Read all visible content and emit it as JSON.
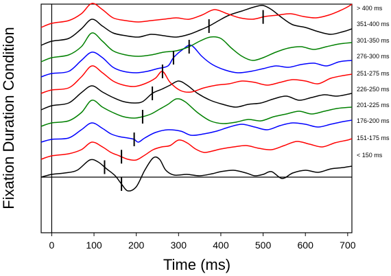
{
  "chart_data": {
    "type": "line",
    "xlabel": "Time (ms)",
    "ylabel": "Fixation Duration Condition",
    "x_ticks": [
      0,
      100,
      200,
      300,
      400,
      500,
      600,
      700
    ],
    "xlim": [
      -25,
      710
    ],
    "grid": false,
    "legend": "labels-right",
    "series": [
      {
        "name": "< 150 ms",
        "color": "#000000",
        "marker_x": [
          125,
          165
        ],
        "points": [
          [
            -25,
            0
          ],
          [
            0,
            4
          ],
          [
            30,
            6
          ],
          [
            60,
            10
          ],
          [
            90,
            25
          ],
          [
            110,
            22
          ],
          [
            130,
            12
          ],
          [
            150,
            2
          ],
          [
            165,
            -10
          ],
          [
            180,
            -20
          ],
          [
            200,
            -14
          ],
          [
            220,
            10
          ],
          [
            240,
            28
          ],
          [
            255,
            26
          ],
          [
            270,
            10
          ],
          [
            290,
            3
          ],
          [
            320,
            4
          ],
          [
            350,
            2
          ],
          [
            380,
            5
          ],
          [
            400,
            8
          ],
          [
            430,
            10
          ],
          [
            460,
            6
          ],
          [
            480,
            2
          ],
          [
            500,
            4
          ],
          [
            520,
            8
          ],
          [
            545,
            -2
          ],
          [
            570,
            6
          ],
          [
            600,
            10
          ],
          [
            630,
            7
          ],
          [
            660,
            12
          ],
          [
            690,
            14
          ],
          [
            710,
            16
          ]
        ]
      },
      {
        "name": "151-175 ms",
        "color": "#ff0000",
        "marker_x": [
          165
        ],
        "points": [
          [
            -25,
            0
          ],
          [
            0,
            5
          ],
          [
            40,
            8
          ],
          [
            70,
            14
          ],
          [
            95,
            25
          ],
          [
            120,
            18
          ],
          [
            140,
            10
          ],
          [
            160,
            5
          ],
          [
            180,
            0
          ],
          [
            200,
            -1
          ],
          [
            220,
            6
          ],
          [
            240,
            14
          ],
          [
            260,
            18
          ],
          [
            280,
            20
          ],
          [
            300,
            28
          ],
          [
            320,
            24
          ],
          [
            340,
            15
          ],
          [
            360,
            10
          ],
          [
            380,
            12
          ],
          [
            400,
            15
          ],
          [
            430,
            18
          ],
          [
            460,
            20
          ],
          [
            490,
            16
          ],
          [
            520,
            14
          ],
          [
            550,
            20
          ],
          [
            580,
            26
          ],
          [
            610,
            22
          ],
          [
            640,
            18
          ],
          [
            670,
            24
          ],
          [
            700,
            28
          ],
          [
            710,
            30
          ]
        ]
      },
      {
        "name": "176-200 ms",
        "color": "#0000ff",
        "marker_x": [
          195
        ],
        "points": [
          [
            -25,
            0
          ],
          [
            0,
            4
          ],
          [
            40,
            6
          ],
          [
            70,
            18
          ],
          [
            95,
            28
          ],
          [
            120,
            20
          ],
          [
            140,
            12
          ],
          [
            160,
            8
          ],
          [
            180,
            6
          ],
          [
            195,
            4
          ],
          [
            205,
            0
          ],
          [
            220,
            6
          ],
          [
            245,
            14
          ],
          [
            275,
            18
          ],
          [
            305,
            16
          ],
          [
            330,
            10
          ],
          [
            360,
            12
          ],
          [
            390,
            16
          ],
          [
            420,
            22
          ],
          [
            450,
            26
          ],
          [
            480,
            22
          ],
          [
            510,
            18
          ],
          [
            540,
            24
          ],
          [
            570,
            28
          ],
          [
            600,
            26
          ],
          [
            630,
            22
          ],
          [
            660,
            26
          ],
          [
            690,
            30
          ],
          [
            710,
            32
          ]
        ]
      },
      {
        "name": "201-225 ms",
        "color": "#008000",
        "marker_x": [
          215
        ],
        "points": [
          [
            -25,
            0
          ],
          [
            0,
            5
          ],
          [
            40,
            8
          ],
          [
            70,
            20
          ],
          [
            95,
            38
          ],
          [
            120,
            28
          ],
          [
            145,
            20
          ],
          [
            170,
            14
          ],
          [
            195,
            12
          ],
          [
            215,
            14
          ],
          [
            235,
            18
          ],
          [
            255,
            25
          ],
          [
            275,
            32
          ],
          [
            295,
            40
          ],
          [
            315,
            36
          ],
          [
            345,
            20
          ],
          [
            375,
            8
          ],
          [
            405,
            4
          ],
          [
            435,
            6
          ],
          [
            465,
            10
          ],
          [
            495,
            8
          ],
          [
            525,
            14
          ],
          [
            555,
            18
          ],
          [
            585,
            22
          ],
          [
            615,
            18
          ],
          [
            645,
            22
          ],
          [
            675,
            26
          ],
          [
            710,
            28
          ]
        ]
      },
      {
        "name": "226-250 ms",
        "color": "#000000",
        "marker_x": [
          238
        ],
        "points": [
          [
            -25,
            0
          ],
          [
            0,
            6
          ],
          [
            40,
            10
          ],
          [
            70,
            25
          ],
          [
            95,
            35
          ],
          [
            120,
            26
          ],
          [
            145,
            18
          ],
          [
            170,
            12
          ],
          [
            195,
            10
          ],
          [
            215,
            12
          ],
          [
            238,
            24
          ],
          [
            260,
            30
          ],
          [
            280,
            36
          ],
          [
            300,
            42
          ],
          [
            320,
            36
          ],
          [
            345,
            24
          ],
          [
            375,
            14
          ],
          [
            405,
            8
          ],
          [
            435,
            4
          ],
          [
            465,
            8
          ],
          [
            495,
            10
          ],
          [
            525,
            16
          ],
          [
            555,
            20
          ],
          [
            585,
            14
          ],
          [
            615,
            18
          ],
          [
            645,
            22
          ],
          [
            675,
            20
          ],
          [
            710,
            24
          ]
        ]
      },
      {
        "name": "251-275 ms",
        "color": "#ff0000",
        "marker_x": [
          262
        ],
        "points": [
          [
            -25,
            0
          ],
          [
            0,
            5
          ],
          [
            40,
            8
          ],
          [
            70,
            24
          ],
          [
            95,
            40
          ],
          [
            120,
            30
          ],
          [
            145,
            18
          ],
          [
            170,
            12
          ],
          [
            195,
            10
          ],
          [
            220,
            14
          ],
          [
            245,
            22
          ],
          [
            262,
            32
          ],
          [
            280,
            16
          ],
          [
            305,
            4
          ],
          [
            330,
            2
          ],
          [
            360,
            8
          ],
          [
            390,
            12
          ],
          [
            420,
            14
          ],
          [
            450,
            18
          ],
          [
            480,
            16
          ],
          [
            510,
            12
          ],
          [
            540,
            16
          ],
          [
            570,
            20
          ],
          [
            600,
            18
          ],
          [
            630,
            14
          ],
          [
            660,
            22
          ],
          [
            690,
            26
          ],
          [
            710,
            28
          ]
        ]
      },
      {
        "name": "276-300 ms",
        "color": "#0000ff",
        "marker_x": [
          288
        ],
        "points": [
          [
            -25,
            0
          ],
          [
            0,
            5
          ],
          [
            40,
            8
          ],
          [
            70,
            24
          ],
          [
            95,
            36
          ],
          [
            120,
            28
          ],
          [
            145,
            14
          ],
          [
            170,
            8
          ],
          [
            200,
            6
          ],
          [
            225,
            8
          ],
          [
            250,
            12
          ],
          [
            275,
            16
          ],
          [
            288,
            28
          ],
          [
            310,
            40
          ],
          [
            330,
            46
          ],
          [
            355,
            30
          ],
          [
            380,
            18
          ],
          [
            410,
            10
          ],
          [
            440,
            6
          ],
          [
            470,
            8
          ],
          [
            500,
            12
          ],
          [
            530,
            16
          ],
          [
            560,
            14
          ],
          [
            590,
            18
          ],
          [
            620,
            20
          ],
          [
            650,
            16
          ],
          [
            680,
            22
          ],
          [
            710,
            24
          ]
        ]
      },
      {
        "name": "301-350 ms",
        "color": "#008000",
        "marker_x": [
          325
        ],
        "points": [
          [
            -25,
            0
          ],
          [
            0,
            6
          ],
          [
            40,
            10
          ],
          [
            70,
            22
          ],
          [
            95,
            42
          ],
          [
            120,
            30
          ],
          [
            145,
            16
          ],
          [
            175,
            10
          ],
          [
            205,
            8
          ],
          [
            235,
            10
          ],
          [
            265,
            14
          ],
          [
            295,
            16
          ],
          [
            325,
            22
          ],
          [
            350,
            30
          ],
          [
            375,
            36
          ],
          [
            400,
            34
          ],
          [
            425,
            20
          ],
          [
            450,
            8
          ],
          [
            475,
            2
          ],
          [
            500,
            6
          ],
          [
            530,
            14
          ],
          [
            560,
            20
          ],
          [
            590,
            22
          ],
          [
            620,
            18
          ],
          [
            650,
            22
          ],
          [
            680,
            26
          ],
          [
            710,
            28
          ]
        ]
      },
      {
        "name": "351-400 ms",
        "color": "#000000",
        "marker_x": [
          372
        ],
        "points": [
          [
            -25,
            0
          ],
          [
            0,
            6
          ],
          [
            40,
            10
          ],
          [
            70,
            24
          ],
          [
            95,
            38
          ],
          [
            120,
            28
          ],
          [
            145,
            18
          ],
          [
            175,
            14
          ],
          [
            205,
            12
          ],
          [
            235,
            16
          ],
          [
            265,
            14
          ],
          [
            295,
            12
          ],
          [
            325,
            16
          ],
          [
            350,
            22
          ],
          [
            372,
            28
          ],
          [
            395,
            36
          ],
          [
            420,
            44
          ],
          [
            450,
            50
          ],
          [
            480,
            56
          ],
          [
            500,
            58
          ],
          [
            520,
            52
          ],
          [
            545,
            40
          ],
          [
            570,
            30
          ],
          [
            600,
            26
          ],
          [
            630,
            20
          ],
          [
            660,
            16
          ],
          [
            690,
            20
          ],
          [
            710,
            24
          ]
        ]
      },
      {
        "name": "> 400 ms",
        "color": "#ff0000",
        "marker_x": [
          500
        ],
        "points": [
          [
            -25,
            0
          ],
          [
            0,
            6
          ],
          [
            40,
            10
          ],
          [
            70,
            20
          ],
          [
            95,
            35
          ],
          [
            120,
            26
          ],
          [
            145,
            14
          ],
          [
            175,
            10
          ],
          [
            205,
            8
          ],
          [
            235,
            10
          ],
          [
            265,
            12
          ],
          [
            295,
            14
          ],
          [
            325,
            12
          ],
          [
            355,
            18
          ],
          [
            385,
            26
          ],
          [
            415,
            20
          ],
          [
            445,
            14
          ],
          [
            475,
            12
          ],
          [
            505,
            16
          ],
          [
            535,
            18
          ],
          [
            565,
            20
          ],
          [
            595,
            16
          ],
          [
            625,
            14
          ],
          [
            655,
            18
          ],
          [
            680,
            24
          ],
          [
            700,
            30
          ],
          [
            710,
            34
          ]
        ]
      }
    ]
  }
}
